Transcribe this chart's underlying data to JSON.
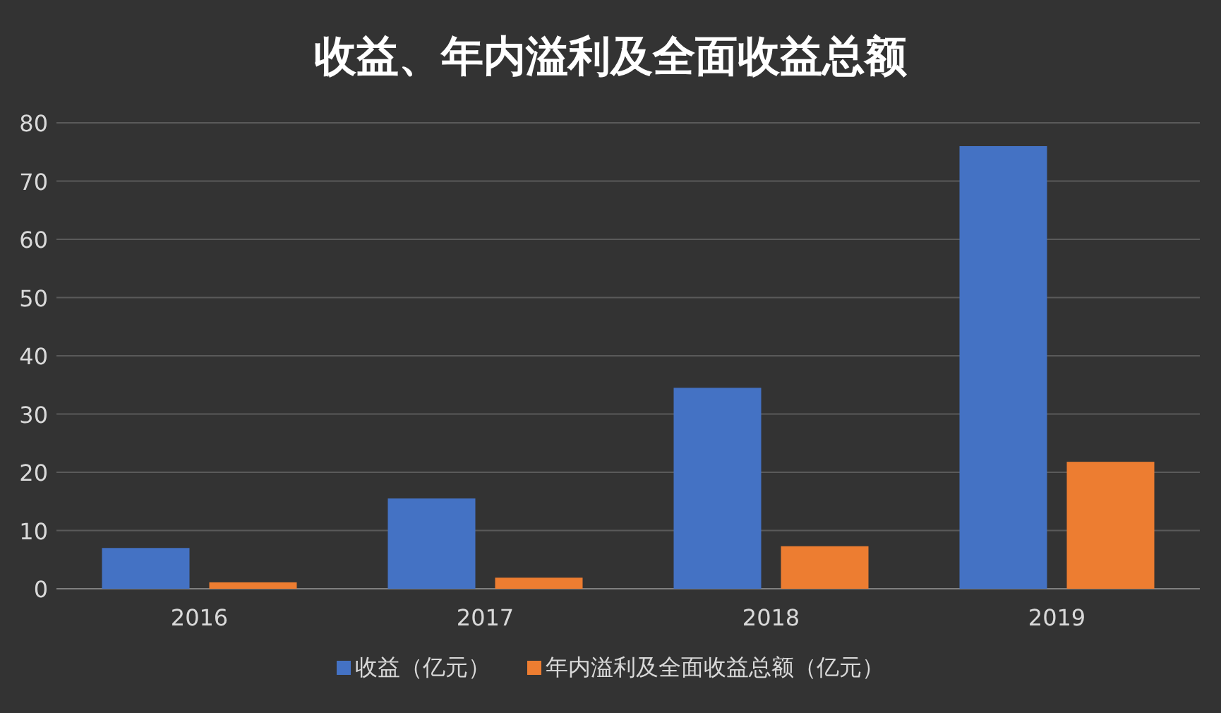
{
  "chart_data": {
    "type": "bar",
    "title": "收益、年内溢利及全面收益总额",
    "categories": [
      "2016",
      "2017",
      "2018",
      "2019"
    ],
    "series": [
      {
        "name": "收益（亿元）",
        "color": "#4472c4",
        "values": [
          7.0,
          15.5,
          34.5,
          76.0
        ]
      },
      {
        "name": "年内溢利及全面收益总额（亿元）",
        "color": "#ed7d31",
        "values": [
          1.1,
          1.9,
          7.3,
          21.8
        ]
      }
    ],
    "ylim": [
      0,
      80
    ],
    "yticks": [
      0,
      10,
      20,
      30,
      40,
      50,
      60,
      70,
      80
    ],
    "grid": "y",
    "legend": "bottom"
  }
}
